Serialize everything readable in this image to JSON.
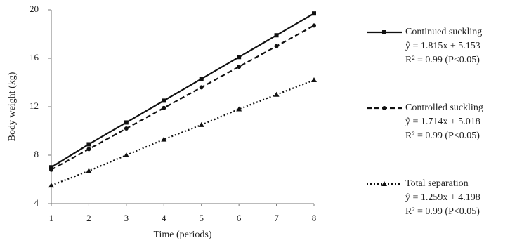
{
  "chart_data": {
    "type": "line",
    "xlabel": "Time (periods)",
    "ylabel": "Body weight (kg)",
    "x": [
      1,
      2,
      3,
      4,
      5,
      6,
      7,
      8
    ],
    "xlim": [
      1,
      8
    ],
    "xticks": [
      1,
      2,
      3,
      4,
      5,
      6,
      7,
      8
    ],
    "ylim": [
      4,
      20
    ],
    "yticks": [
      4,
      8,
      12,
      16,
      20
    ],
    "series": [
      {
        "name": "Continued suckling",
        "equation": "ŷ = 1.815x + 5.153",
        "r2": "R² = 0.99 (P<0.05)",
        "color": "#111111",
        "dash": "solid",
        "marker": "square",
        "values": [
          7.0,
          8.9,
          10.7,
          12.5,
          14.3,
          16.1,
          17.9,
          19.7
        ]
      },
      {
        "name": "Controlled suckling",
        "equation": "ŷ = 1.714x + 5.018",
        "r2": "R² = 0.99 (P<0.05)",
        "color": "#111111",
        "dash": "dashed",
        "marker": "circle",
        "values": [
          6.8,
          8.5,
          10.2,
          11.9,
          13.6,
          15.3,
          17.0,
          18.7
        ]
      },
      {
        "name": "Total separation",
        "equation": "ŷ = 1.259x + 4.198",
        "r2": "R² = 0.99 (P<0.05)",
        "color": "#111111",
        "dash": "dotted",
        "marker": "triangle",
        "values": [
          5.5,
          6.7,
          8.0,
          9.3,
          10.5,
          11.8,
          13.0,
          14.2
        ]
      }
    ]
  }
}
